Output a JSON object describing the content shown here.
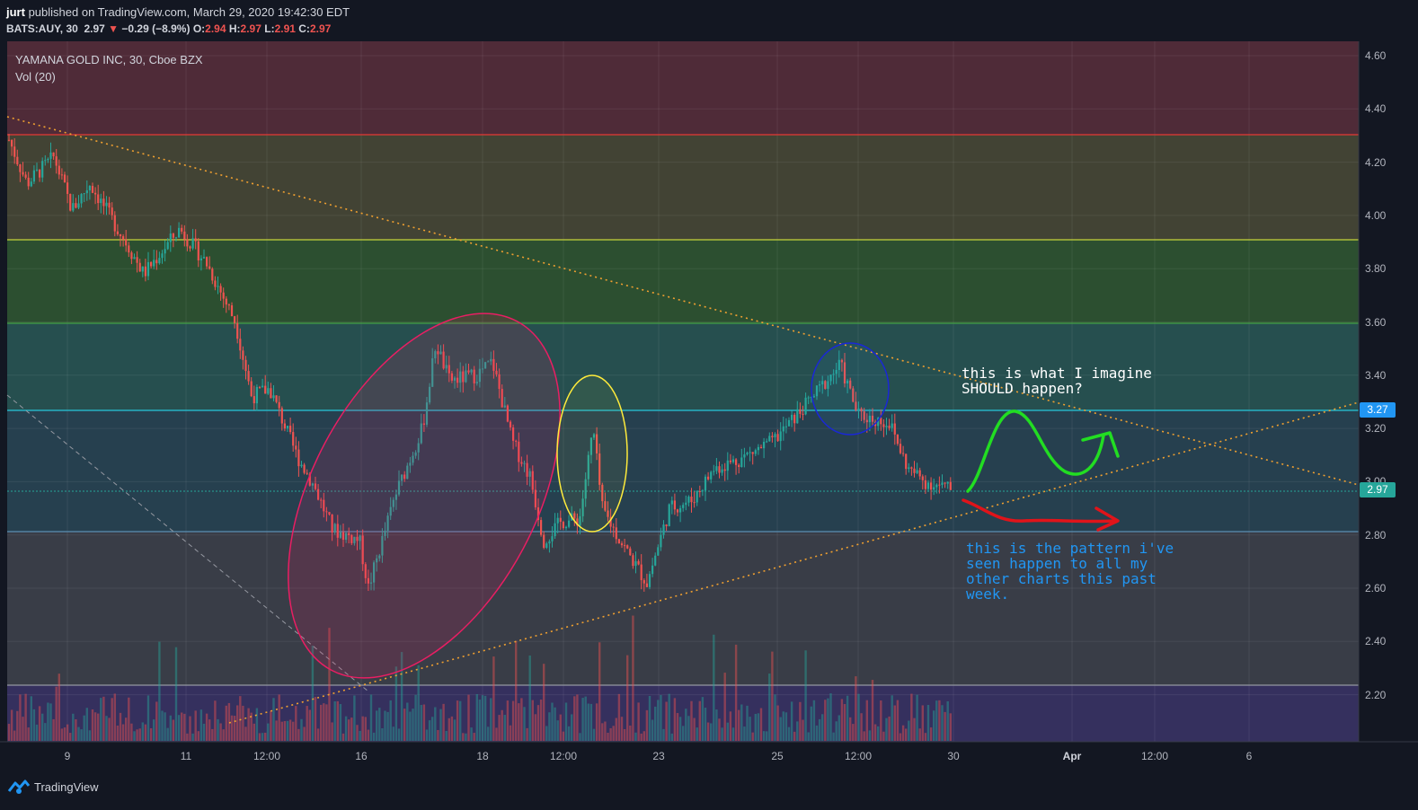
{
  "header": {
    "author": "jurt",
    "published_text": "published on TradingView.com, March 29, 2020 19:42:30 EDT",
    "symbol": "BATS:AUY, 30",
    "last": "2.97",
    "arrow": "▼",
    "change": "−0.29 (−8.9%)",
    "o_label": "O:",
    "o_value": "2.94",
    "h_label": "H:",
    "h_value": "2.97",
    "l_label": "L:",
    "l_value": "2.91",
    "c_label": "C:",
    "c_value": "2.97"
  },
  "chart": {
    "title": "YAMANA GOLD INC, 30, Cboe BZX",
    "volume_label": "Vol (20)",
    "price_ticks": [
      "4.60",
      "4.40",
      "4.20",
      "4.00",
      "3.80",
      "3.60",
      "3.40",
      "3.20",
      "3.00",
      "2.80",
      "2.60",
      "2.40",
      "2.20"
    ],
    "time_ticks": [
      {
        "label": "9",
        "bold": false
      },
      {
        "label": "11",
        "bold": false
      },
      {
        "label": "12:00",
        "bold": false
      },
      {
        "label": "16",
        "bold": false
      },
      {
        "label": "18",
        "bold": false
      },
      {
        "label": "12:00",
        "bold": false
      },
      {
        "label": "23",
        "bold": false
      },
      {
        "label": "25",
        "bold": false
      },
      {
        "label": "12:00",
        "bold": false
      },
      {
        "label": "30",
        "bold": false
      },
      {
        "label": "Apr",
        "bold": true
      },
      {
        "label": "12:00",
        "bold": false
      },
      {
        "label": "6",
        "bold": false
      }
    ],
    "badges": [
      {
        "value": "3.27",
        "color": "#2196f3"
      },
      {
        "value": "2.97",
        "color": "#26a69a"
      }
    ],
    "zone_colors": [
      "#4f2b38",
      "#424334",
      "#2c4f30",
      "#264f4f",
      "#26404f",
      "#393d47",
      "#35305e"
    ],
    "candle_up_color": "#26a69a",
    "candle_down_color": "#ef5350"
  },
  "annotations": {
    "note_top_1": "this is what I imagine",
    "note_top_2": "SHOULD happen?",
    "note_bottom_1": "this is the pattern i've",
    "note_bottom_2": "seen happen to all my",
    "note_bottom_3": "other charts this past",
    "note_bottom_4": "week."
  },
  "footer": {
    "brand": "TradingView"
  }
}
